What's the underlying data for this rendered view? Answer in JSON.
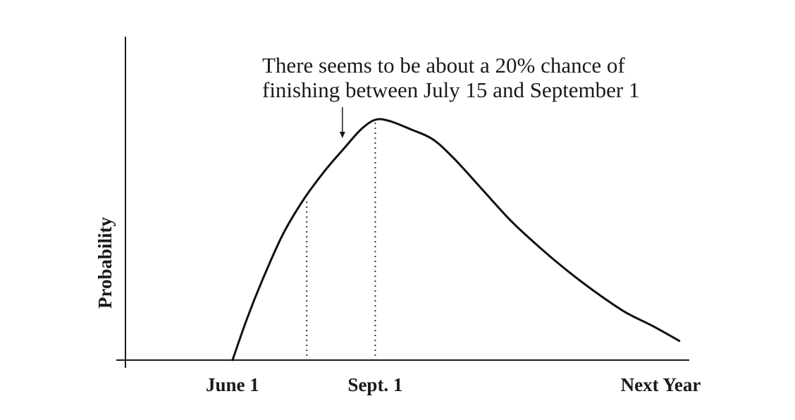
{
  "chart_data": {
    "type": "line",
    "title": "",
    "xlabel": "",
    "ylabel": "Probability",
    "x_ticks": [
      {
        "label": "June 1",
        "x": 0
      },
      {
        "label": "Sept. 1",
        "x": 1
      },
      {
        "label": "Next Year",
        "x": 3
      }
    ],
    "xlim": [
      -0.75,
      3.2
    ],
    "ylim": [
      0,
      1.0
    ],
    "grid": false,
    "legend": "none",
    "series": [
      {
        "points": [
          [
            0.0,
            0.0
          ],
          [
            0.1,
            0.17
          ],
          [
            0.2,
            0.32
          ],
          [
            0.35,
            0.52
          ],
          [
            0.5,
            0.67
          ],
          [
            0.65,
            0.79
          ],
          [
            0.78,
            0.88
          ],
          [
            0.9,
            0.96
          ],
          [
            1.0,
            1.0
          ],
          [
            1.1,
            0.995
          ],
          [
            1.25,
            0.96
          ],
          [
            1.4,
            0.92
          ],
          [
            1.55,
            0.84
          ],
          [
            1.75,
            0.71
          ],
          [
            1.95,
            0.58
          ],
          [
            2.15,
            0.47
          ],
          [
            2.35,
            0.37
          ],
          [
            2.55,
            0.28
          ],
          [
            2.75,
            0.2
          ],
          [
            2.95,
            0.14
          ],
          [
            3.13,
            0.08
          ]
        ]
      }
    ],
    "markers": [
      {
        "label": "July 15",
        "x": 0.52
      },
      {
        "label": "September 1",
        "x": 1.0
      }
    ],
    "annotation": {
      "lines": [
        "There seems to be about a 20% chance of",
        "finishing between July 15 and September 1"
      ],
      "points_to_x": 0.77
    }
  }
}
